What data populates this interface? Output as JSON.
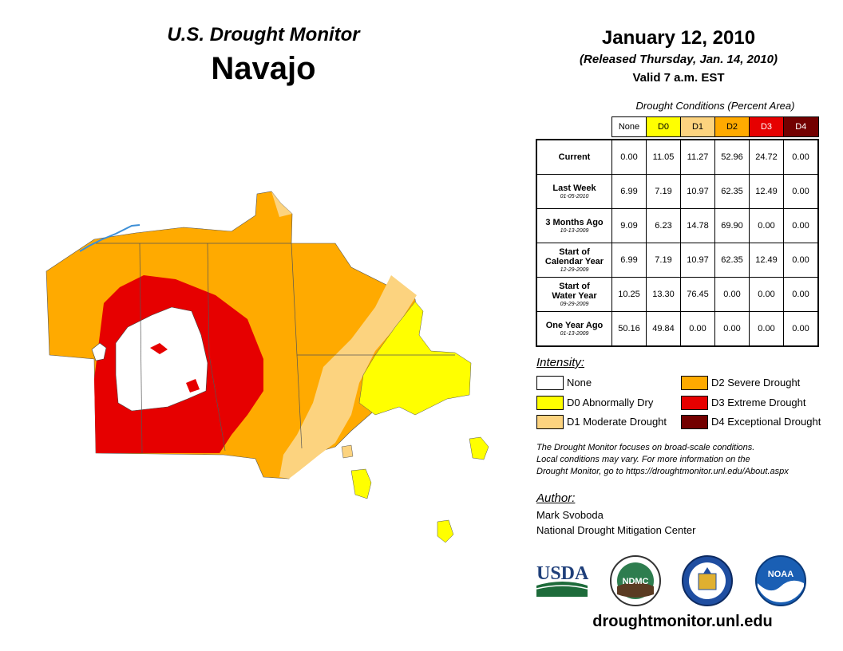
{
  "header": {
    "title": "U.S. Drought Monitor",
    "region": "Navajo",
    "date": "January 12, 2010",
    "released": "(Released Thursday, Jan. 14, 2010)",
    "valid": "Valid 7 a.m. EST"
  },
  "table": {
    "caption": "Drought Conditions (Percent Area)",
    "columns": [
      "None",
      "D0",
      "D1",
      "D2",
      "D3",
      "D4"
    ],
    "rows": [
      {
        "label": "Current",
        "label2": "",
        "date": "",
        "values": [
          "0.00",
          "11.05",
          "11.27",
          "52.96",
          "24.72",
          "0.00"
        ]
      },
      {
        "label": "Last Week",
        "label2": "",
        "date": "01-05-2010",
        "values": [
          "6.99",
          "7.19",
          "10.97",
          "62.35",
          "12.49",
          "0.00"
        ]
      },
      {
        "label": "3 Months Ago",
        "label2": "",
        "date": "10-13-2009",
        "values": [
          "9.09",
          "6.23",
          "14.78",
          "69.90",
          "0.00",
          "0.00"
        ]
      },
      {
        "label": "Start of",
        "label2": "Calendar Year",
        "date": "12-29-2009",
        "values": [
          "6.99",
          "7.19",
          "10.97",
          "62.35",
          "12.49",
          "0.00"
        ]
      },
      {
        "label": "Start of",
        "label2": "Water Year",
        "date": "09-29-2009",
        "values": [
          "10.25",
          "13.30",
          "76.45",
          "0.00",
          "0.00",
          "0.00"
        ]
      },
      {
        "label": "One Year Ago",
        "label2": "",
        "date": "01-13-2009",
        "values": [
          "50.16",
          "49.84",
          "0.00",
          "0.00",
          "0.00",
          "0.00"
        ]
      }
    ]
  },
  "legend": {
    "title": "Intensity:",
    "items": [
      {
        "label": "None",
        "color": "#ffffff"
      },
      {
        "label": "D0 Abnormally Dry",
        "color": "#ffff00"
      },
      {
        "label": "D1 Moderate Drought",
        "color": "#fcd37f"
      },
      {
        "label": "D2 Severe Drought",
        "color": "#ffaa00"
      },
      {
        "label": "D3 Extreme Drought",
        "color": "#e60000"
      },
      {
        "label": "D4 Exceptional Drought",
        "color": "#730000"
      }
    ]
  },
  "note": {
    "line1": "The Drought Monitor focuses on broad-scale conditions.",
    "line2": "Local conditions may vary. For more information on the",
    "line3": "Drought Monitor, go to https://droughtmonitor.unl.edu/About.aspx"
  },
  "author": {
    "title": "Author:",
    "name": "Mark Svoboda",
    "org": "National Drought Mitigation Center"
  },
  "logos": {
    "usda": "USDA",
    "ndmc": "NDMC",
    "noaa": "NOAA"
  },
  "website": "droughtmonitor.unl.edu",
  "colors": {
    "none": "#ffffff",
    "d0": "#ffff00",
    "d1": "#fcd37f",
    "d2": "#ffaa00",
    "d3": "#e60000",
    "d4": "#730000",
    "water": "#3d8fd6"
  }
}
